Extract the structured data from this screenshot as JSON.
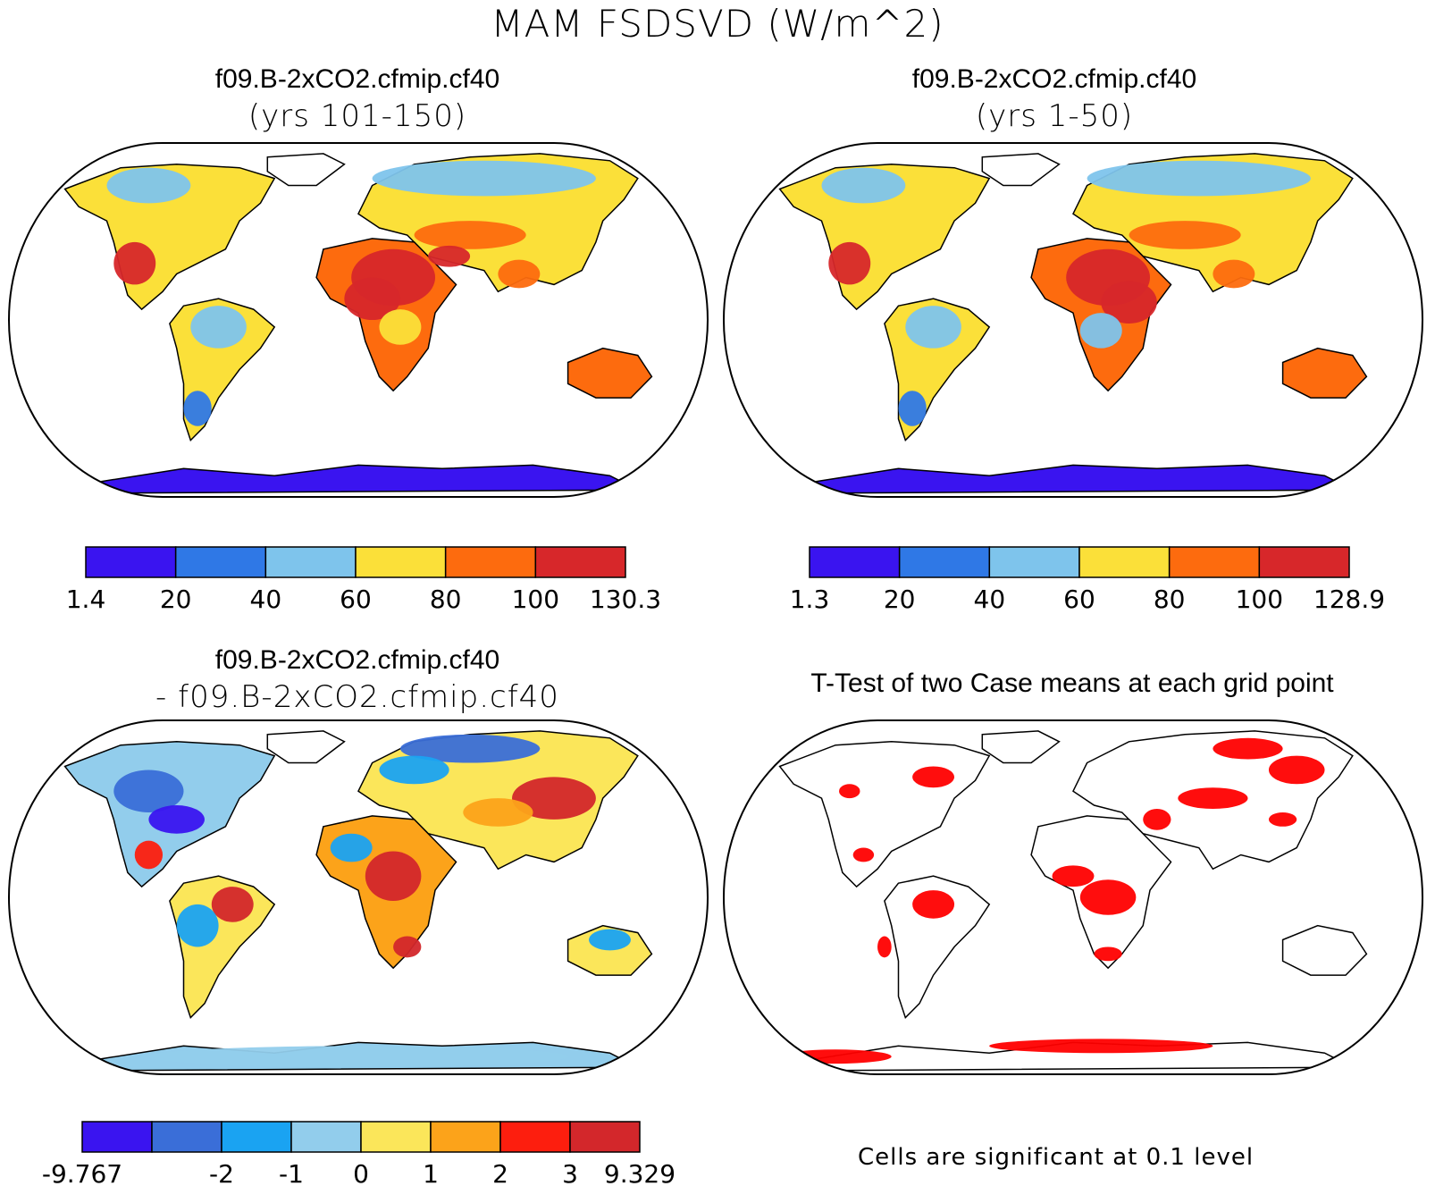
{
  "figure": {
    "title": "MAM FSDSVD (W/m^2)"
  },
  "panels": [
    {
      "id": "p1",
      "title": "f09.B-2xCO2.cfmip.cf40",
      "subtitle": "(yrs 101-150)",
      "colorbar": {
        "labels": [
          "1.4",
          "20",
          "40",
          "60",
          "80",
          "100",
          "130.3"
        ],
        "colors": [
          "#3a14f0",
          "#2f78e6",
          "#7ec4ec",
          "#fbe039",
          "#fd6b0e",
          "#d7272a"
        ]
      }
    },
    {
      "id": "p2",
      "title": "f09.B-2xCO2.cfmip.cf40",
      "subtitle": "(yrs 1-50)",
      "colorbar": {
        "labels": [
          "1.3",
          "20",
          "40",
          "60",
          "80",
          "100",
          "128.9"
        ],
        "colors": [
          "#3a14f0",
          "#2f78e6",
          "#7ec4ec",
          "#fbe039",
          "#fd6b0e",
          "#d7272a"
        ]
      }
    },
    {
      "id": "p3",
      "title": "f09.B-2xCO2.cfmip.cf40",
      "subtitle": "- f09.B-2xCO2.cfmip.cf40",
      "colorbar": {
        "labels": [
          "-9.767",
          "",
          "-2",
          "-1",
          "0",
          "1",
          "2",
          "3",
          "9.329"
        ],
        "colors": [
          "#3a14f0",
          "#3a6ed8",
          "#1aa3f2",
          "#92cdec",
          "#fbe65a",
          "#fca31a",
          "#fd1e0e",
          "#d3272b"
        ]
      }
    },
    {
      "id": "p4",
      "title": "T-Test of two Case means at each grid point",
      "footnote": "Cells are significant at 0.1 level",
      "significant_color": "#ff0000"
    }
  ]
}
